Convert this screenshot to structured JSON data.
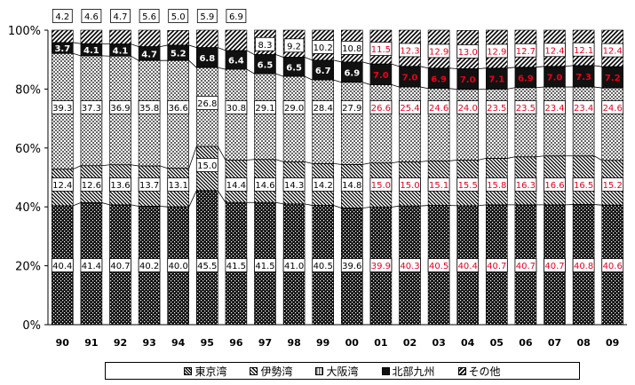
{
  "chart_data": {
    "type": "bar",
    "stacked": true,
    "percent": true,
    "categories": [
      "90",
      "91",
      "92",
      "93",
      "94",
      "95",
      "96",
      "97",
      "98",
      "99",
      "00",
      "01",
      "02",
      "03",
      "04",
      "05",
      "06",
      "07",
      "08",
      "09"
    ],
    "yticks": [
      "0%",
      "20%",
      "40%",
      "60%",
      "80%",
      "100%"
    ],
    "ylim": [
      0,
      100
    ],
    "series": [
      {
        "name": "東京湾",
        "pattern": "dense-check",
        "values": [
          40.4,
          41.4,
          40.7,
          40.2,
          40.0,
          45.5,
          41.5,
          41.5,
          41.0,
          40.5,
          39.6,
          39.9,
          40.3,
          40.5,
          40.4,
          40.7,
          40.7,
          40.7,
          40.8,
          40.6
        ],
        "labels": [
          "40.4",
          "41.4",
          "40.7",
          "40.2",
          "40.0",
          "45.5",
          "41.5",
          "41.5",
          "41.0",
          "40.5",
          "39.6",
          "39.9",
          "40.3",
          "40.5",
          "40.4",
          "40.7",
          "40.7",
          "40.7",
          "40.8",
          "40.6"
        ]
      },
      {
        "name": "伊勢湾",
        "pattern": "diagonal",
        "values": [
          12.4,
          12.6,
          13.6,
          13.7,
          13.1,
          15.0,
          14.4,
          14.6,
          14.3,
          14.2,
          14.8,
          15.0,
          15.0,
          15.1,
          15.5,
          15.8,
          16.3,
          16.6,
          16.5,
          15.2
        ],
        "labels": [
          "12.4",
          "12.6",
          "13.6",
          "13.7",
          "13.1",
          "15.0",
          "14.4",
          "14.6",
          "14.3",
          "14.2",
          "14.8",
          "15.0",
          "15.0",
          "15.1",
          "15.5",
          "15.8",
          "16.3",
          "16.6",
          "16.5",
          "15.2"
        ]
      },
      {
        "name": "大阪湾",
        "pattern": "light-check",
        "values": [
          39.3,
          37.3,
          36.9,
          35.8,
          36.6,
          26.8,
          30.8,
          29.1,
          29.0,
          28.4,
          27.9,
          26.6,
          25.4,
          24.6,
          24.0,
          23.5,
          23.5,
          23.4,
          23.4,
          24.6
        ],
        "labels": [
          "39.3",
          "37.3",
          "36.9",
          "35.8",
          "36.6",
          "26.8",
          "30.8",
          "29.1",
          "29.0",
          "28.4",
          "27.9",
          "26.6",
          "25.4",
          "24.6",
          "24.0",
          "23.5",
          "23.5",
          "23.4",
          "23.4",
          "24.6"
        ]
      },
      {
        "name": "北部九州",
        "pattern": "solid",
        "values": [
          3.7,
          4.1,
          4.1,
          4.7,
          5.2,
          6.8,
          6.4,
          6.5,
          6.5,
          6.7,
          6.9,
          7.0,
          7.0,
          6.9,
          7.0,
          7.1,
          6.9,
          7.0,
          7.3,
          7.2
        ],
        "labels": [
          "3.7",
          "4.1",
          "4.1",
          "4.7",
          "5.2",
          "6.8",
          "6.4",
          "6.5",
          "6.5",
          "6.7",
          "6.9",
          "7.0",
          "7.0",
          "6.9",
          "7.0",
          "7.1",
          "6.9",
          "7.0",
          "7.3",
          "7.2"
        ]
      },
      {
        "name": "その他",
        "pattern": "hatch",
        "values": [
          4.2,
          4.6,
          4.7,
          5.6,
          5.0,
          5.9,
          6.9,
          8.3,
          9.2,
          10.2,
          10.8,
          11.5,
          12.3,
          12.9,
          13.0,
          12.9,
          12.7,
          12.4,
          12.1,
          12.4
        ],
        "labels": [
          "4.2",
          "4.6",
          "4.7",
          "5.6",
          "5.0",
          "5.9",
          "6.9",
          "8.3",
          "9.2",
          "10.2",
          "10.8",
          "11.5",
          "12.3",
          "12.9",
          "13.0",
          "12.9",
          "12.7",
          "12.4",
          "12.1",
          "12.4"
        ]
      }
    ],
    "legend": {
      "position": "bottom"
    },
    "colors": {
      "label_red": "#e8001c",
      "label_black": "#000000",
      "bar_dark": "#111111"
    }
  }
}
